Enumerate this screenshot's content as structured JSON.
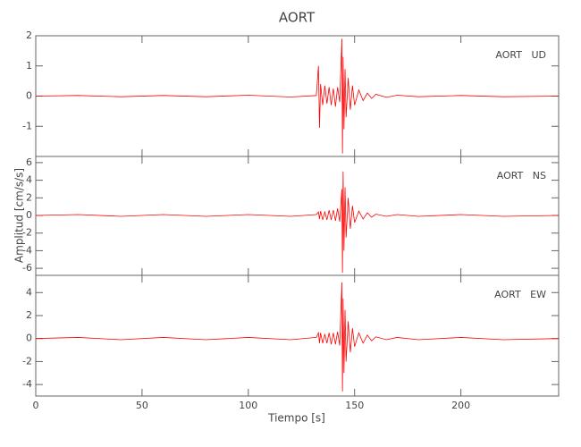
{
  "chart_data": [
    {
      "type": "line",
      "title": "AORT",
      "label": "AORT   UD",
      "x": [
        0,
        20,
        40,
        60,
        80,
        100,
        120,
        132,
        133,
        133.5,
        134,
        135,
        136,
        137,
        138,
        139,
        140,
        141,
        142,
        143,
        144,
        144.3,
        144.6,
        145,
        145.5,
        146,
        147,
        148,
        149,
        150,
        152,
        154,
        156,
        158,
        160,
        165,
        170,
        180,
        200,
        220,
        246
      ],
      "values": [
        0,
        0.02,
        -0.02,
        0.02,
        -0.02,
        0.03,
        -0.03,
        0.02,
        1.0,
        -1.05,
        0.4,
        -0.3,
        0.35,
        -0.25,
        0.3,
        -0.3,
        0.25,
        -0.35,
        0.3,
        -0.2,
        1.9,
        -1.9,
        1.3,
        -1.1,
        0.9,
        -0.7,
        0.6,
        -0.45,
        0.35,
        -0.3,
        0.2,
        -0.15,
        0.1,
        -0.08,
        0.06,
        -0.04,
        0.03,
        -0.02,
        0.02,
        -0.02,
        0
      ],
      "color": "#ff0000",
      "xlim": [
        0,
        246
      ],
      "ylim": [
        -2,
        2
      ],
      "yticks": [
        -1,
        0,
        1,
        2
      ]
    },
    {
      "type": "line",
      "label": "AORT   NS",
      "y_label": "Amplitud [cm/s/s]",
      "x": [
        0,
        20,
        40,
        60,
        80,
        100,
        120,
        132,
        133,
        133.5,
        134,
        135,
        136,
        137,
        138,
        139,
        140,
        141,
        142,
        143,
        144,
        144.3,
        144.6,
        145,
        145.5,
        146,
        147,
        148,
        149,
        150,
        152,
        154,
        156,
        158,
        160,
        165,
        170,
        180,
        200,
        220,
        246
      ],
      "values": [
        0,
        0.1,
        -0.1,
        0.1,
        -0.1,
        0.1,
        -0.1,
        0.1,
        0.4,
        -0.4,
        0.5,
        -0.5,
        0.4,
        -0.5,
        0.6,
        -0.5,
        0.6,
        -0.6,
        0.8,
        -0.7,
        3.0,
        -6.5,
        5.0,
        -4.0,
        3.2,
        -2.5,
        2.0,
        -1.5,
        1.1,
        -0.8,
        0.5,
        -0.4,
        0.3,
        -0.2,
        0.15,
        -0.1,
        0.1,
        -0.1,
        0.1,
        -0.1,
        0
      ],
      "color": "#ff0000",
      "xlim": [
        0,
        246
      ],
      "ylim": [
        -6.8,
        6.7
      ],
      "yticks": [
        -6,
        -4,
        -2,
        0,
        2,
        4,
        6
      ]
    },
    {
      "type": "line",
      "label": "AORT   EW",
      "x_label": "Tiempo [s]",
      "x": [
        0,
        20,
        40,
        60,
        80,
        100,
        120,
        132,
        133,
        133.5,
        134,
        135,
        136,
        137,
        138,
        139,
        140,
        141,
        142,
        143,
        144,
        144.3,
        144.6,
        145,
        145.5,
        146,
        147,
        148,
        149,
        150,
        152,
        154,
        156,
        158,
        160,
        165,
        170,
        180,
        200,
        220,
        246
      ],
      "values": [
        0,
        0.1,
        -0.1,
        0.1,
        -0.1,
        0.1,
        -0.1,
        0.1,
        0.5,
        -0.4,
        0.5,
        -0.4,
        0.4,
        -0.4,
        0.5,
        -0.5,
        0.5,
        -0.5,
        0.6,
        -0.6,
        4.9,
        -4.6,
        3.5,
        -3.0,
        2.5,
        -2.0,
        1.5,
        -1.2,
        0.9,
        -0.7,
        0.5,
        -0.4,
        0.3,
        -0.2,
        0.15,
        -0.1,
        0.1,
        -0.1,
        0.1,
        -0.1,
        0
      ],
      "color": "#ff0000",
      "xlim": [
        0,
        246
      ],
      "ylim": [
        -5,
        5.5
      ],
      "yticks": [
        -4,
        -2,
        0,
        2,
        4
      ],
      "xticks": [
        0,
        50,
        100,
        150,
        200
      ]
    }
  ]
}
